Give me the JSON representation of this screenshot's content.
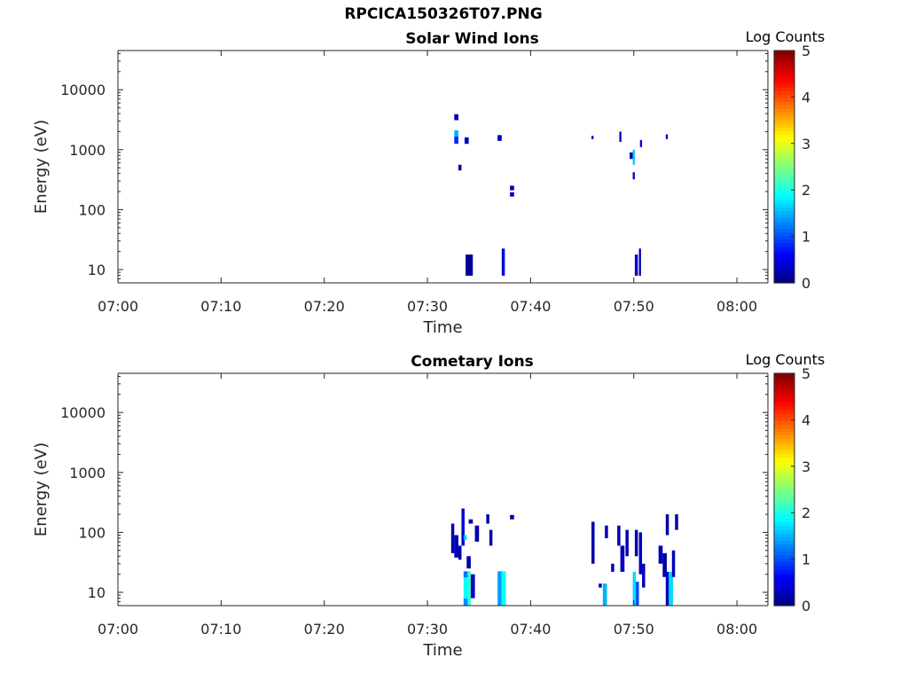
{
  "figure_title": "RPCICA150326T07.PNG",
  "colorbar": {
    "label": "Log Counts",
    "ticks": [
      "0",
      "1",
      "2",
      "3",
      "4",
      "5"
    ],
    "range": [
      0,
      5
    ]
  },
  "chart_data": [
    {
      "type": "heatmap",
      "title": "Solar Wind Ions",
      "xlabel": "Time",
      "ylabel": "Energy (eV)",
      "y_scale": "log",
      "xlim_minutes_after_0700": [
        0,
        63
      ],
      "ylim": [
        6,
        45000
      ],
      "x_ticks": [
        "07:00",
        "07:10",
        "07:20",
        "07:30",
        "07:40",
        "07:50",
        "08:00"
      ],
      "y_ticks": [
        "10",
        "100",
        "1000",
        "10000"
      ],
      "cells": [
        {
          "t0": 32.6,
          "t1": 33.0,
          "e0": 3100,
          "e1": 3900,
          "log_counts": 0.2
        },
        {
          "t0": 32.6,
          "t1": 33.0,
          "e0": 1650,
          "e1": 2100,
          "log_counts": 1.5
        },
        {
          "t0": 32.6,
          "t1": 33.0,
          "e0": 1250,
          "e1": 1650,
          "log_counts": 0.8
        },
        {
          "t0": 33.6,
          "t1": 34.0,
          "e0": 1250,
          "e1": 1600,
          "log_counts": 0.3
        },
        {
          "t0": 33.0,
          "t1": 33.3,
          "e0": 450,
          "e1": 560,
          "log_counts": 0.2
        },
        {
          "t0": 36.8,
          "t1": 37.2,
          "e0": 1400,
          "e1": 1750,
          "log_counts": 0.3
        },
        {
          "t0": 38.0,
          "t1": 38.4,
          "e0": 210,
          "e1": 250,
          "log_counts": 0.3
        },
        {
          "t0": 38.0,
          "t1": 38.4,
          "e0": 165,
          "e1": 195,
          "log_counts": 0.3
        },
        {
          "t0": 45.9,
          "t1": 46.1,
          "e0": 1500,
          "e1": 1700,
          "log_counts": 0.3
        },
        {
          "t0": 48.6,
          "t1": 48.8,
          "e0": 1350,
          "e1": 2000,
          "log_counts": 0.3
        },
        {
          "t0": 49.6,
          "t1": 49.9,
          "e0": 700,
          "e1": 900,
          "log_counts": 0.2
        },
        {
          "t0": 49.9,
          "t1": 50.1,
          "e0": 560,
          "e1": 1000,
          "log_counts": 1.6
        },
        {
          "t0": 49.9,
          "t1": 50.1,
          "e0": 320,
          "e1": 420,
          "log_counts": 0.3
        },
        {
          "t0": 50.6,
          "t1": 50.8,
          "e0": 1100,
          "e1": 1450,
          "log_counts": 0.5
        },
        {
          "t0": 53.1,
          "t1": 53.3,
          "e0": 1500,
          "e1": 1800,
          "log_counts": 0.3
        },
        {
          "t0": 33.7,
          "t1": 34.4,
          "e0": 7.9,
          "e1": 17.8,
          "log_counts": 0.1
        },
        {
          "t0": 37.2,
          "t1": 37.5,
          "e0": 7.9,
          "e1": 22.4,
          "log_counts": 0.5
        },
        {
          "t0": 50.1,
          "t1": 50.4,
          "e0": 7.9,
          "e1": 17.8,
          "log_counts": 0.4
        },
        {
          "t0": 50.5,
          "t1": 50.7,
          "e0": 7.9,
          "e1": 22.4,
          "log_counts": 0.2
        }
      ]
    },
    {
      "type": "heatmap",
      "title": "Cometary Ions",
      "xlabel": "Time",
      "ylabel": "Energy (eV)",
      "y_scale": "log",
      "xlim_minutes_after_0700": [
        0,
        63
      ],
      "ylim": [
        6,
        45000
      ],
      "x_ticks": [
        "07:00",
        "07:10",
        "07:20",
        "07:30",
        "07:40",
        "07:50",
        "08:00"
      ],
      "y_ticks": [
        "10",
        "100",
        "1000",
        "10000"
      ],
      "cells": [
        {
          "t0": 32.3,
          "t1": 32.6,
          "e0": 45,
          "e1": 140,
          "log_counts": 0.2
        },
        {
          "t0": 32.6,
          "t1": 33.0,
          "e0": 38,
          "e1": 90,
          "log_counts": 0.3
        },
        {
          "t0": 33.0,
          "t1": 33.3,
          "e0": 35,
          "e1": 60,
          "log_counts": 0.2
        },
        {
          "t0": 33.3,
          "t1": 33.6,
          "e0": 60,
          "e1": 250,
          "log_counts": 0.4
        },
        {
          "t0": 33.5,
          "t1": 33.8,
          "e0": 75,
          "e1": 90,
          "log_counts": 1.6
        },
        {
          "t0": 33.8,
          "t1": 34.2,
          "e0": 25,
          "e1": 40,
          "log_counts": 0.2
        },
        {
          "t0": 34.0,
          "t1": 34.4,
          "e0": 140,
          "e1": 165,
          "log_counts": 0.2
        },
        {
          "t0": 34.6,
          "t1": 35.0,
          "e0": 70,
          "e1": 130,
          "log_counts": 0.2
        },
        {
          "t0": 35.7,
          "t1": 36.0,
          "e0": 140,
          "e1": 200,
          "log_counts": 0.2
        },
        {
          "t0": 36.0,
          "t1": 36.3,
          "e0": 60,
          "e1": 110,
          "log_counts": 0.2
        },
        {
          "t0": 38.0,
          "t1": 38.4,
          "e0": 165,
          "e1": 195,
          "log_counts": 0.2
        },
        {
          "t0": 33.5,
          "t1": 33.9,
          "e0": 6,
          "e1": 7.9,
          "log_counts": 1.3
        },
        {
          "t0": 33.5,
          "t1": 33.9,
          "e0": 7.9,
          "e1": 17.8,
          "log_counts": 1.9
        },
        {
          "t0": 33.5,
          "t1": 33.9,
          "e0": 17.8,
          "e1": 22.4,
          "log_counts": 1.2
        },
        {
          "t0": 33.9,
          "t1": 34.2,
          "e0": 6,
          "e1": 22.4,
          "log_counts": 2.1
        },
        {
          "t0": 34.2,
          "t1": 34.6,
          "e0": 8,
          "e1": 20,
          "log_counts": 0.3
        },
        {
          "t0": 36.8,
          "t1": 37.2,
          "e0": 6,
          "e1": 22.4,
          "log_counts": 1.4
        },
        {
          "t0": 37.2,
          "t1": 37.6,
          "e0": 6,
          "e1": 22.4,
          "log_counts": 1.9
        },
        {
          "t0": 45.9,
          "t1": 46.2,
          "e0": 30,
          "e1": 150,
          "log_counts": 0.2
        },
        {
          "t0": 46.6,
          "t1": 46.9,
          "e0": 12,
          "e1": 14,
          "log_counts": 0.2
        },
        {
          "t0": 47.0,
          "t1": 47.4,
          "e0": 6,
          "e1": 14,
          "log_counts": 1.5
        },
        {
          "t0": 47.2,
          "t1": 47.5,
          "e0": 80,
          "e1": 130,
          "log_counts": 0.3
        },
        {
          "t0": 47.8,
          "t1": 48.1,
          "e0": 22,
          "e1": 30,
          "log_counts": 0.3
        },
        {
          "t0": 48.4,
          "t1": 48.7,
          "e0": 60,
          "e1": 130,
          "log_counts": 0.2
        },
        {
          "t0": 48.7,
          "t1": 49.1,
          "e0": 22,
          "e1": 60,
          "log_counts": 0.3
        },
        {
          "t0": 49.2,
          "t1": 49.5,
          "e0": 40,
          "e1": 110,
          "log_counts": 0.2
        },
        {
          "t0": 49.9,
          "t1": 50.2,
          "e0": 6,
          "e1": 22,
          "log_counts": 1.7
        },
        {
          "t0": 50.2,
          "t1": 50.5,
          "e0": 6,
          "e1": 15,
          "log_counts": 1.0
        },
        {
          "t0": 50.1,
          "t1": 50.4,
          "e0": 40,
          "e1": 110,
          "log_counts": 0.2
        },
        {
          "t0": 50.5,
          "t1": 50.8,
          "e0": 20,
          "e1": 100,
          "log_counts": 0.3
        },
        {
          "t0": 50.8,
          "t1": 51.1,
          "e0": 12,
          "e1": 30,
          "log_counts": 0.3
        },
        {
          "t0": 52.4,
          "t1": 52.8,
          "e0": 30,
          "e1": 60,
          "log_counts": 0.3
        },
        {
          "t0": 52.8,
          "t1": 53.2,
          "e0": 18,
          "e1": 45,
          "log_counts": 0.2
        },
        {
          "t0": 53.1,
          "t1": 53.4,
          "e0": 6,
          "e1": 22,
          "log_counts": 0.3
        },
        {
          "t0": 53.4,
          "t1": 53.8,
          "e0": 6,
          "e1": 22,
          "log_counts": 1.7
        },
        {
          "t0": 53.7,
          "t1": 54.0,
          "e0": 18,
          "e1": 50,
          "log_counts": 0.3
        },
        {
          "t0": 53.1,
          "t1": 53.4,
          "e0": 90,
          "e1": 200,
          "log_counts": 0.2
        },
        {
          "t0": 54.0,
          "t1": 54.3,
          "e0": 110,
          "e1": 200,
          "log_counts": 0.2
        }
      ]
    }
  ]
}
